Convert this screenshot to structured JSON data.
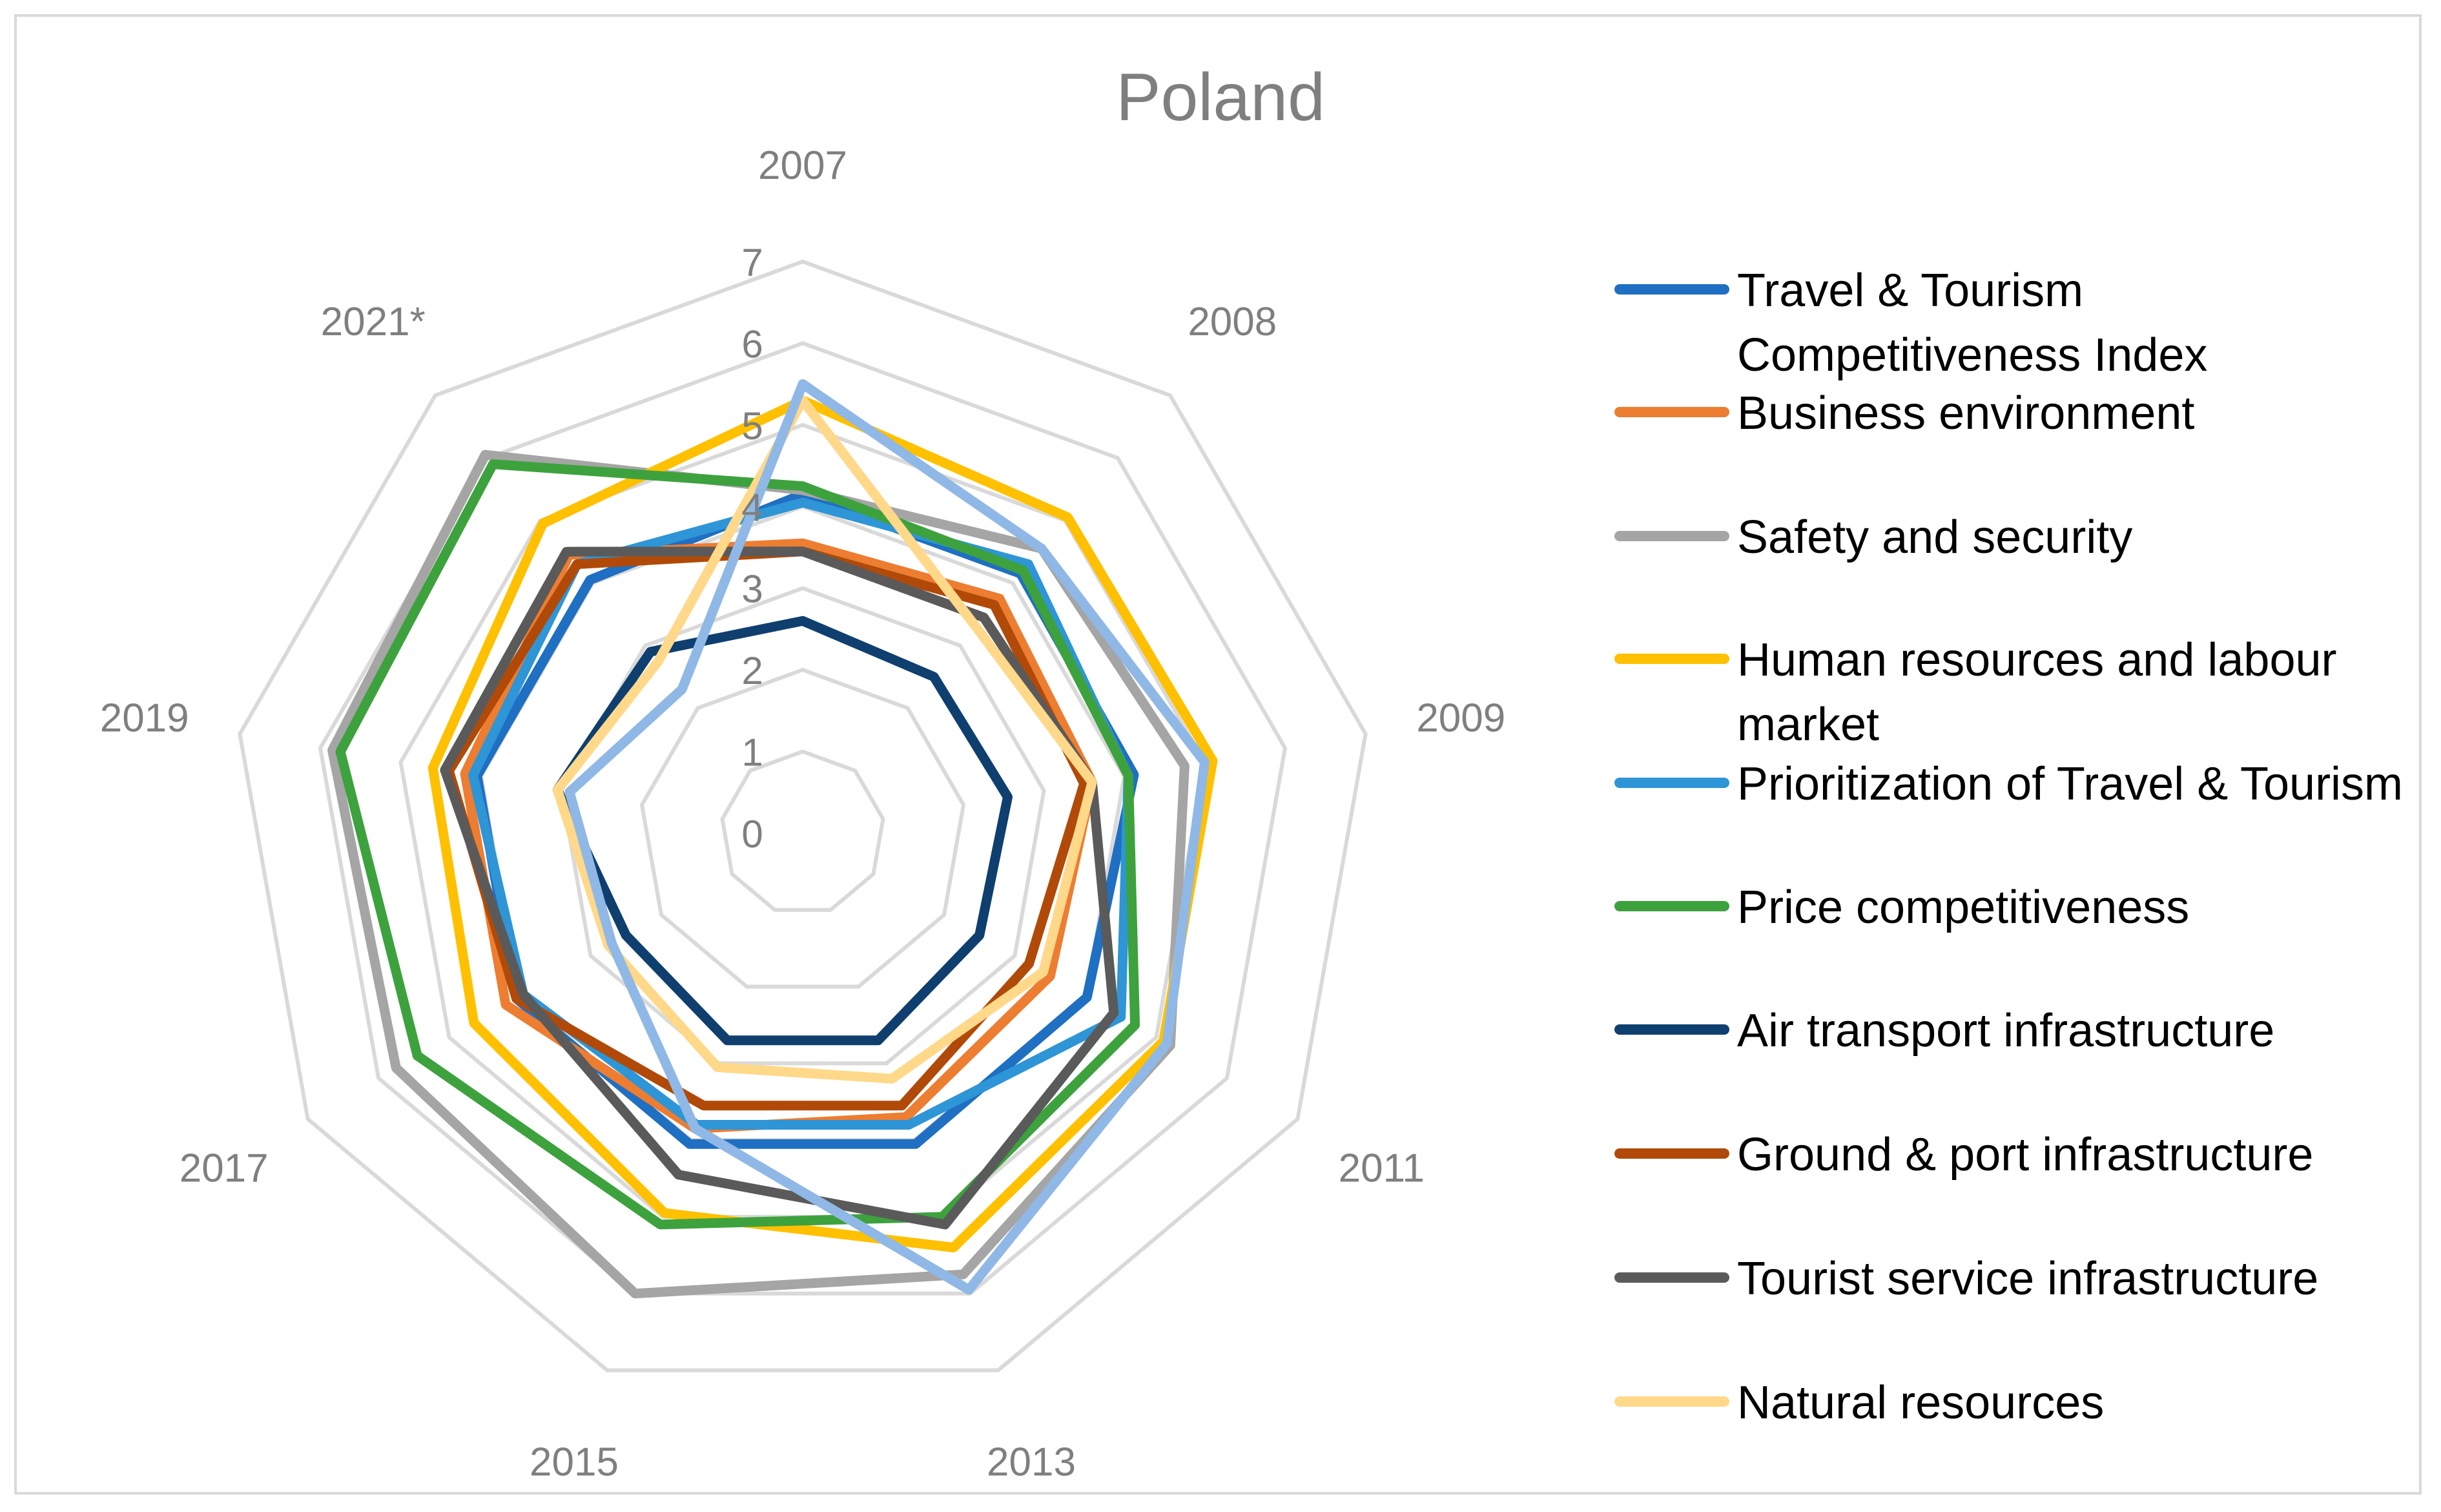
{
  "chart_data": {
    "type": "radar",
    "title": "Poland",
    "categories": [
      "2007",
      "2008",
      "2009",
      "2011",
      "2013",
      "2015",
      "2017",
      "2019",
      "2021*"
    ],
    "radial_ticks": [
      "0",
      "1",
      "2",
      "3",
      "4",
      "5",
      "6",
      "7"
    ],
    "rmin": 0,
    "rmax": 7,
    "grid": true,
    "legend_position": "right",
    "series": [
      {
        "name": "Travel & Tourism Competitiveness Index",
        "color": "#1f6fc2",
        "values": [
          4.15,
          4.15,
          4.12,
          4.02,
          4.05,
          4.05,
          4.05,
          4.05,
          4.05
        ]
      },
      {
        "name": "Business environment",
        "color": "#ed7d31",
        "values": [
          3.55,
          3.75,
          3.6,
          3.5,
          3.7,
          3.85,
          4.2,
          4.2,
          4.45
        ]
      },
      {
        "name": "Safety and security",
        "color": "#a5a5a5",
        "values": [
          4.2,
          4.55,
          4.75,
          5.2,
          5.75,
          6.0,
          5.75,
          5.85,
          6.05
        ]
      },
      {
        "name": "Human resources and labour market",
        "color": "#ffc000",
        "values": [
          5.3,
          5.05,
          5.1,
          5.1,
          5.4,
          4.95,
          4.65,
          4.6,
          4.95
        ]
      },
      {
        "name": "Prioritization of Travel & Tourism",
        "color": "#2e95d6",
        "values": [
          4.05,
          4.3,
          4.05,
          4.5,
          3.8,
          3.8,
          3.95,
          4.1,
          4.3
        ]
      },
      {
        "name": "Price competitiveness",
        "color": "#3da23d",
        "values": [
          4.25,
          4.2,
          4.05,
          4.7,
          5.0,
          5.1,
          5.45,
          5.75,
          5.9
        ]
      },
      {
        "name": "Air transport infrastructure",
        "color": "#0e3f6e",
        "values": [
          2.6,
          2.5,
          2.55,
          2.5,
          2.7,
          2.7,
          2.5,
          3.05,
          2.9
        ]
      },
      {
        "name": "Ground & port infrastructure",
        "color": "#b14a08",
        "values": [
          3.45,
          3.65,
          3.5,
          3.2,
          3.55,
          3.55,
          4.05,
          4.4,
          4.3
        ]
      },
      {
        "name": "Tourist service infrastructure",
        "color": "#5a5a5a",
        "values": [
          3.45,
          3.45,
          3.6,
          4.4,
          5.1,
          4.45,
          3.95,
          4.45,
          4.5
        ]
      },
      {
        "name": "Natural resources",
        "color": "#ffd88a",
        "values": [
          5.3,
          3.3,
          3.6,
          3.4,
          3.2,
          3.05,
          2.75,
          3.05,
          2.75
        ]
      },
      {
        "name": "",
        "color": "#8fb8e6",
        "values": [
          5.5,
          4.55,
          5.0,
          5.15,
          5.95,
          3.85,
          2.7,
          2.9,
          2.3
        ]
      }
    ]
  }
}
